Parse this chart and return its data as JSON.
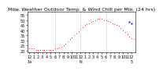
{
  "title": "Milw. Weather Outdoor Temp. & Wind Chill per Min. (24 hrs)",
  "background_color": "#ffffff",
  "temp_color": "#ff0000",
  "windchill_color": "#0000ff",
  "ylim": [
    18,
    58
  ],
  "yticks": [
    20,
    25,
    30,
    35,
    40,
    45,
    50,
    55
  ],
  "xlim": [
    -1,
    50
  ],
  "temp_data": [
    22,
    22,
    22,
    21,
    21,
    21,
    21,
    21,
    21,
    21,
    21,
    21,
    22,
    22,
    23,
    24,
    25,
    27,
    29,
    31,
    33,
    35,
    37,
    39,
    41,
    43,
    45,
    46,
    47,
    48,
    49,
    50,
    51,
    51,
    51,
    50,
    50,
    49,
    48,
    47,
    46,
    45,
    44,
    42,
    40,
    38,
    36,
    34,
    32,
    31
  ],
  "windchill_data": [
    null,
    null,
    null,
    null,
    null,
    null,
    null,
    null,
    null,
    null,
    null,
    null,
    null,
    null,
    null,
    null,
    null,
    null,
    null,
    null,
    null,
    null,
    null,
    null,
    null,
    null,
    null,
    null,
    null,
    null,
    null,
    null,
    null,
    null,
    null,
    null,
    null,
    null,
    null,
    null,
    null,
    null,
    null,
    null,
    null,
    null,
    null,
    48,
    47,
    null
  ],
  "vline_positions": [
    12,
    24,
    36
  ],
  "xtick_positions": [
    0,
    2,
    4,
    6,
    8,
    10,
    12,
    14,
    16,
    18,
    20,
    22,
    24,
    26,
    28,
    30,
    32,
    34,
    36,
    38,
    40,
    42,
    44,
    46,
    48
  ],
  "xtick_labels": [
    "12",
    "1",
    "2",
    "3",
    "4",
    "5",
    "6",
    "7",
    "8",
    "9",
    "10",
    "11",
    "12",
    "1",
    "2",
    "3",
    "4",
    "5",
    "6",
    "7",
    "8",
    "9",
    "10",
    "11",
    "12"
  ],
  "xtick_sublabels": [
    "1a",
    "",
    "",
    "",
    "",
    "",
    "",
    "",
    "",
    "",
    "",
    "",
    "N",
    "",
    "",
    "",
    "",
    "",
    "",
    "",
    "",
    "",
    "",
    "",
    "5"
  ],
  "title_fontsize": 4.5,
  "tick_fontsize": 3.5,
  "dot_size": 1.5,
  "windchill_dot_size": 3
}
